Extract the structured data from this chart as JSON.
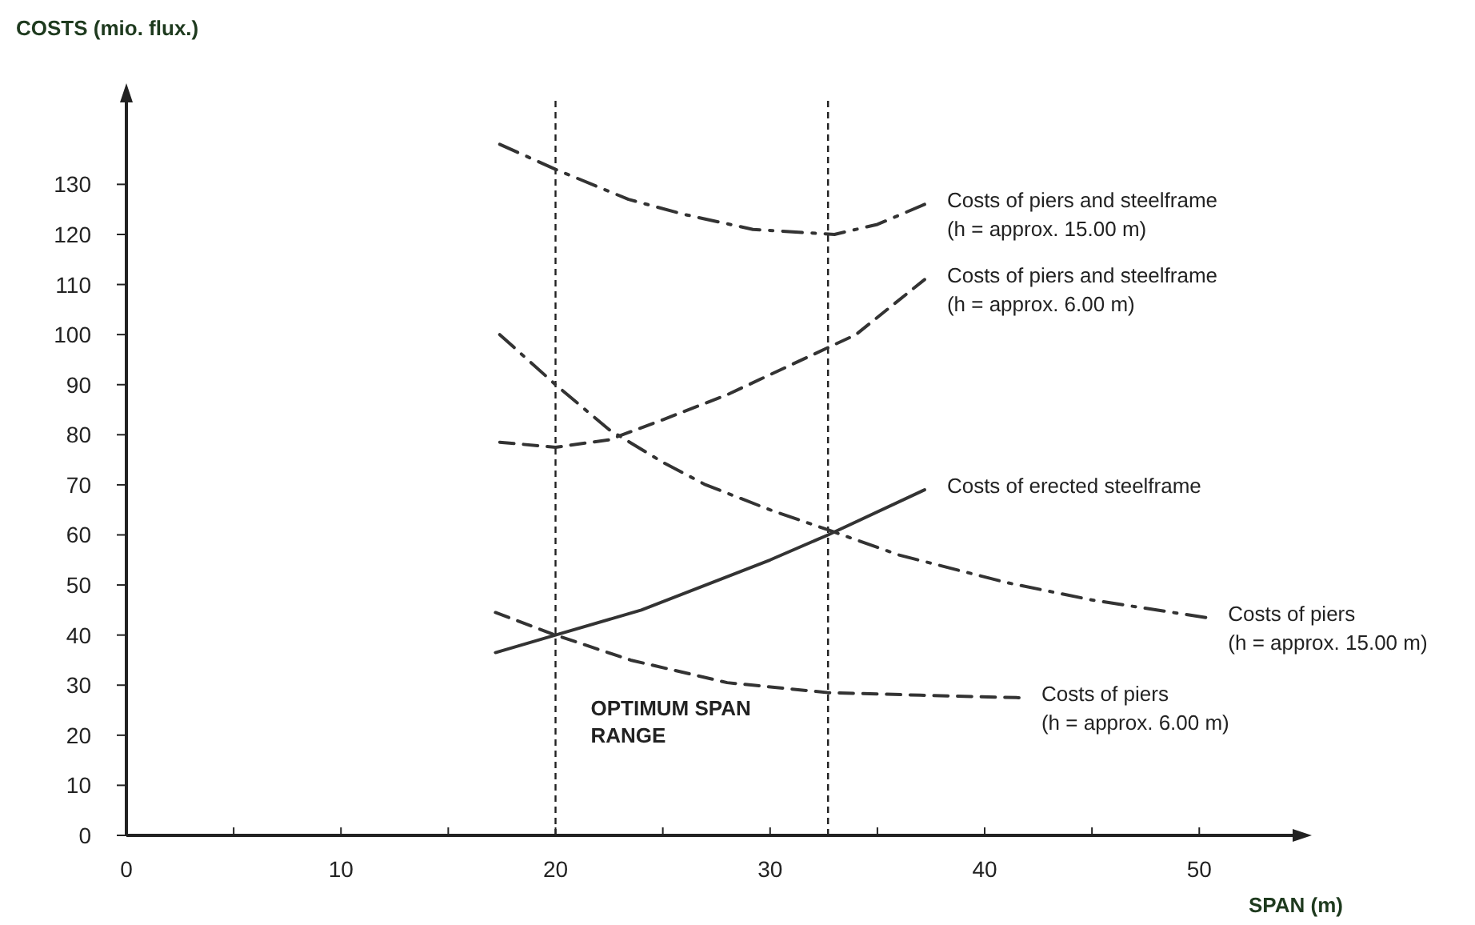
{
  "chart_data": {
    "type": "line",
    "ylabel": "COSTS (mio. flux.)",
    "xlabel": "SPAN (m)",
    "xlim": [
      0,
      54.5
    ],
    "ylim": [
      0,
      147
    ],
    "xticks": [
      0,
      {
        "value": 5,
        "label": null
      },
      10,
      {
        "value": 15,
        "label": null
      },
      20,
      {
        "value": 25,
        "label": null
      },
      30,
      {
        "value": 35,
        "label": null
      },
      40,
      {
        "value": 45,
        "label": null
      },
      50
    ],
    "yticks": [
      0,
      10,
      20,
      30,
      40,
      50,
      60,
      70,
      80,
      90,
      100,
      110,
      120,
      130
    ],
    "grid": false,
    "legend": false,
    "marker": "none",
    "series": [
      {
        "name": "Costs of piers and steelframe\n(h = approx. 15.00 m)",
        "color": "#333333",
        "line_style": "dashdot",
        "x": [
          17.4,
          20,
          23.4,
          26,
          29.2,
          33,
          35,
          37.2
        ],
        "values": [
          138,
          133,
          127,
          124,
          121,
          120,
          122,
          126
        ]
      },
      {
        "name": "Costs of piers and steelframe\n(h = approx. 6.00 m)",
        "color": "#333333",
        "line_style": "dashed",
        "x": [
          17.4,
          20,
          22.5,
          25,
          28,
          31,
          34,
          37.2
        ],
        "values": [
          78.5,
          77.5,
          79,
          83,
          88,
          94,
          100,
          111
        ]
      },
      {
        "name": "Costs of erected steelframe",
        "color": "#333333",
        "line_style": "solid",
        "x": [
          17.2,
          20,
          24,
          27,
          30,
          32.7,
          37.2
        ],
        "values": [
          36.5,
          40,
          45,
          50,
          55,
          60,
          69
        ]
      },
      {
        "name": "Costs of piers\n(h = approx. 15.00 m)",
        "color": "#333333",
        "line_style": "dashdot",
        "x": [
          17.4,
          20,
          22.5,
          25,
          27,
          30,
          32.7,
          36,
          41,
          45,
          50.3
        ],
        "values": [
          100,
          90,
          81,
          74.5,
          70,
          65,
          61,
          56,
          50.5,
          47,
          43.5
        ]
      },
      {
        "name": "Costs of piers\n(h = approx. 6.00 m)",
        "color": "#333333",
        "line_style": "dashed",
        "x": [
          17.2,
          20,
          23.5,
          28,
          32.7,
          37,
          41.6
        ],
        "values": [
          44.5,
          40,
          35,
          30.5,
          28.5,
          28,
          27.5
        ]
      }
    ],
    "ref_lines": [
      {
        "axis": "x",
        "value": 20,
        "line_style": "dashed"
      },
      {
        "axis": "x",
        "value": 32.7,
        "line_style": "dashed"
      }
    ],
    "annotations": [
      "OPTIMUM SPAN\nRANGE"
    ]
  }
}
